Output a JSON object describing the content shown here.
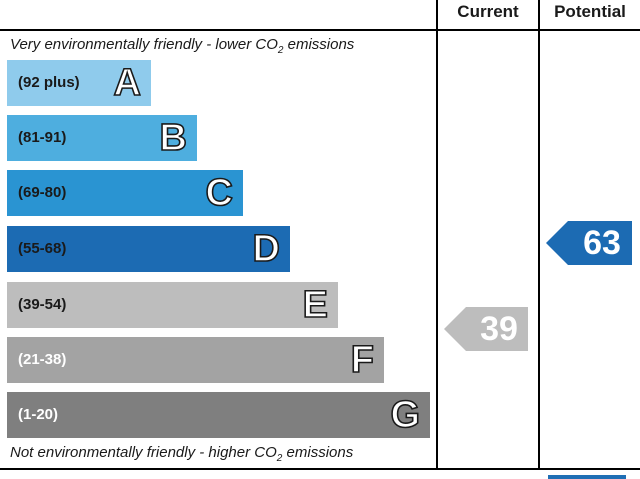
{
  "headers": {
    "current": "Current",
    "potential": "Potential"
  },
  "captions": {
    "top_main": "Very environmentally friendly - lower C",
    "top_o": "O",
    "top_sub": "2",
    "top_tail": " emissions",
    "bottom_main": "Not environmentally friendly - higher C",
    "bottom_o": "O",
    "bottom_sub": "2",
    "bottom_tail": " emissions"
  },
  "chart_data": {
    "type": "bar",
    "bands": [
      {
        "letter": "A",
        "range": "(92 plus)",
        "min": 92,
        "max": null,
        "color": "#8fcbec",
        "text_color": "#1a1a1a"
      },
      {
        "letter": "B",
        "range": "(81-91)",
        "min": 81,
        "max": 91,
        "color": "#4eaedf",
        "text_color": "#1a1a1a"
      },
      {
        "letter": "C",
        "range": "(69-80)",
        "min": 69,
        "max": 80,
        "color": "#2a94d2",
        "text_color": "#1a1a1a"
      },
      {
        "letter": "D",
        "range": "(55-68)",
        "min": 55,
        "max": 68,
        "color": "#1c6bb3",
        "text_color": "#1a1a1a"
      },
      {
        "letter": "E",
        "range": "(39-54)",
        "min": 39,
        "max": 54,
        "color": "#bdbdbd",
        "text_color": "#1a1a1a"
      },
      {
        "letter": "F",
        "range": "(21-38)",
        "min": 21,
        "max": 38,
        "color": "#a3a3a3",
        "text_color": "#ffffff"
      },
      {
        "letter": "G",
        "range": "(1-20)",
        "min": 1,
        "max": 20,
        "color": "#7f7f7f",
        "text_color": "#ffffff"
      }
    ],
    "current": {
      "value": 39,
      "band": "E",
      "color": "#bdbdbd"
    },
    "potential": {
      "value": 63,
      "band": "D",
      "color": "#1c6bb3"
    }
  }
}
